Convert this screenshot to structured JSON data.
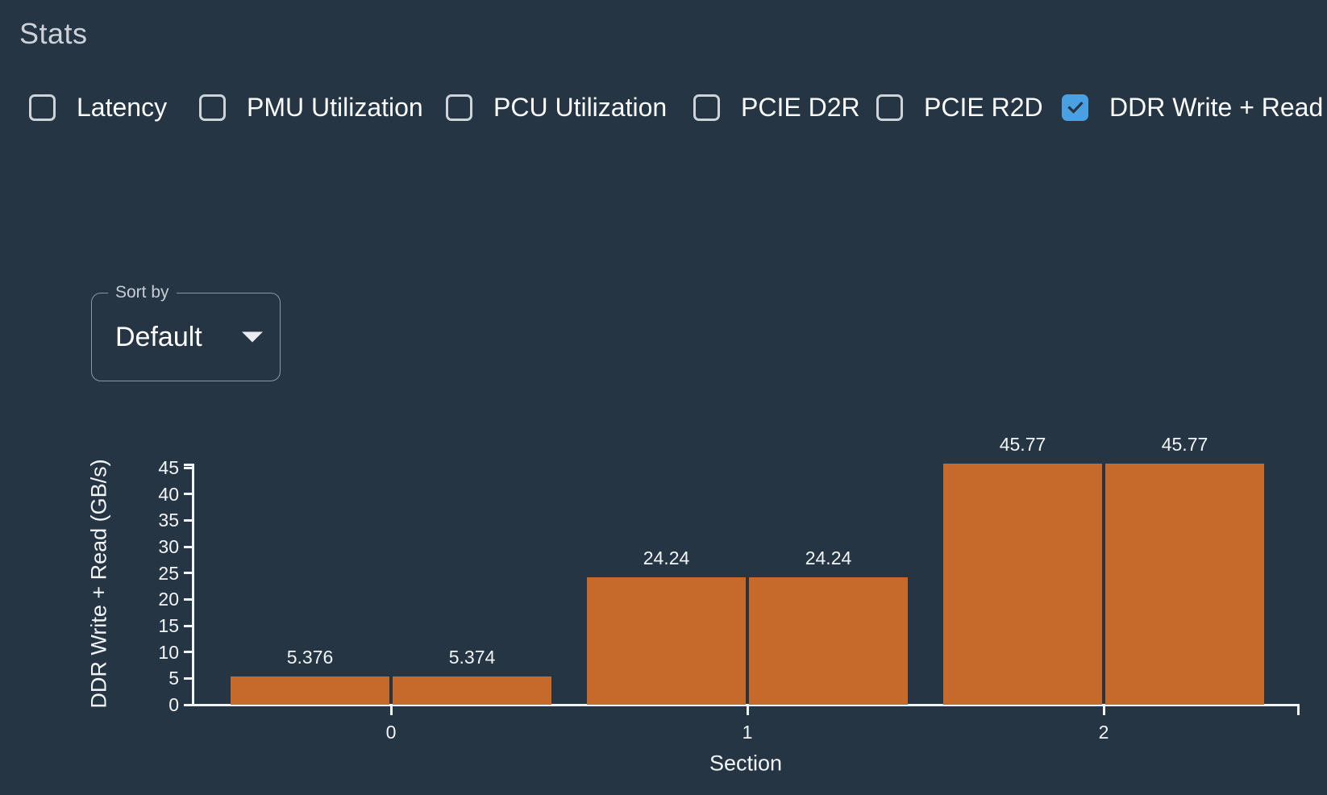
{
  "title": "Stats",
  "stats_checkboxes": [
    {
      "label": "Latency",
      "checked": false
    },
    {
      "label": "PMU Utilization",
      "checked": false
    },
    {
      "label": "PCU Utilization",
      "checked": false
    },
    {
      "label": "PCIE D2R",
      "checked": false
    },
    {
      "label": "PCIE R2D",
      "checked": false
    },
    {
      "label": "DDR Write + Read",
      "checked": true
    }
  ],
  "sort": {
    "label": "Sort by",
    "value": "Default"
  },
  "colors": {
    "background": "#253544",
    "bar": "#c66a2b",
    "checkbox_checked": "#4aa0e0",
    "checkbox_border": "#ccd3d9",
    "axis": "#f2f5f7"
  },
  "chart_data": {
    "type": "bar",
    "categories": [
      "0",
      "1",
      "2"
    ],
    "series": [
      {
        "name": "bar-left",
        "values": [
          5.376,
          24.24,
          45.77
        ],
        "labels": [
          "5.376",
          "24.24",
          "45.77"
        ]
      },
      {
        "name": "bar-right",
        "values": [
          5.374,
          24.24,
          45.77
        ],
        "labels": [
          "5.374",
          "24.24",
          "45.77"
        ]
      }
    ],
    "xlabel": "Section",
    "ylabel": "DDR Write + Read (GB/s)",
    "ylim": [
      0,
      45.77
    ],
    "yticks": [
      0,
      5,
      10,
      15,
      20,
      25,
      30,
      35,
      40,
      45
    ],
    "legend": "none",
    "grid": false
  }
}
